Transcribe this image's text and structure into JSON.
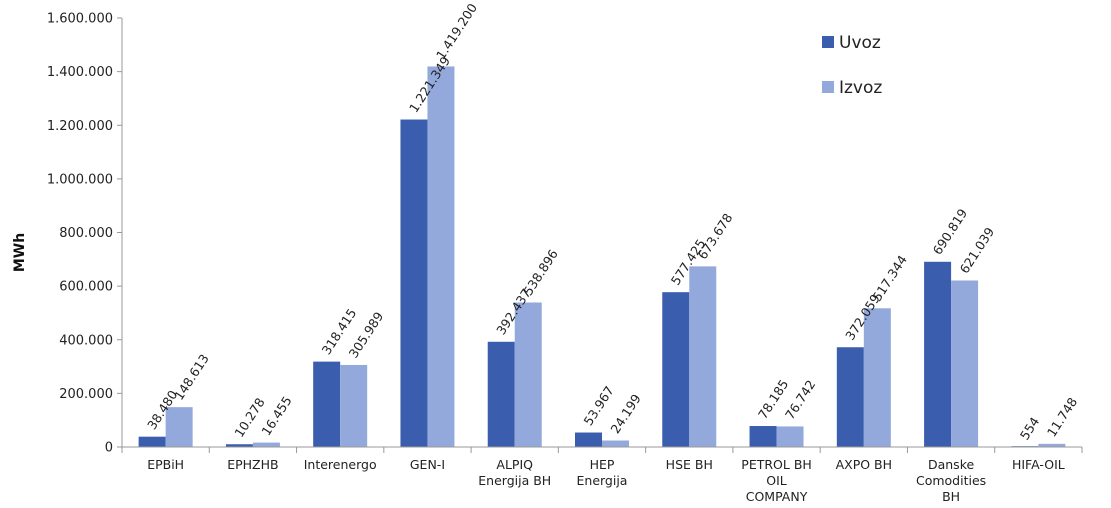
{
  "chart_data": {
    "type": "bar",
    "ylabel": "MWh",
    "ylim": [
      0,
      1600000
    ],
    "yticks": [
      "0",
      "200.000",
      "400.000",
      "600.000",
      "800.000",
      "1.000.000",
      "1.200.000",
      "1.400.000",
      "1.600.000"
    ],
    "grid": false,
    "legend_position": "top-right",
    "categories": [
      [
        "EPBiH"
      ],
      [
        "EPHZHB"
      ],
      [
        "Interenergo"
      ],
      [
        "GEN-I"
      ],
      [
        "ALPIQ",
        "Energija BH"
      ],
      [
        "HEP",
        "Energija"
      ],
      [
        "HSE BH"
      ],
      [
        "PETROL BH",
        "OIL",
        "COMPANY"
      ],
      [
        "AXPO BH"
      ],
      [
        "Danske",
        "Comodities",
        "BH"
      ],
      [
        "HIFA-OIL"
      ]
    ],
    "series": [
      {
        "name": "Uvoz",
        "color": "#3a5dad",
        "values": [
          38480,
          10278,
          318415,
          1221349,
          392437,
          53967,
          577425,
          78185,
          372059,
          690819,
          554
        ],
        "labels": [
          "38.480",
          "10.278",
          "318.415",
          "1.221.349",
          "392.437",
          "53.967",
          "577.425",
          "78.185",
          "372.059",
          "690.819",
          "554"
        ]
      },
      {
        "name": "Izvoz",
        "color": "#93a9dc",
        "values": [
          148613,
          16455,
          305989,
          1419200,
          538896,
          24199,
          673678,
          76742,
          517344,
          621039,
          11748
        ],
        "labels": [
          "148.613",
          "16.455",
          "305.989",
          "1.419.200",
          "538.896",
          "24.199",
          "673.678",
          "76.742",
          "517.344",
          "621.039",
          "11.748"
        ]
      }
    ]
  }
}
